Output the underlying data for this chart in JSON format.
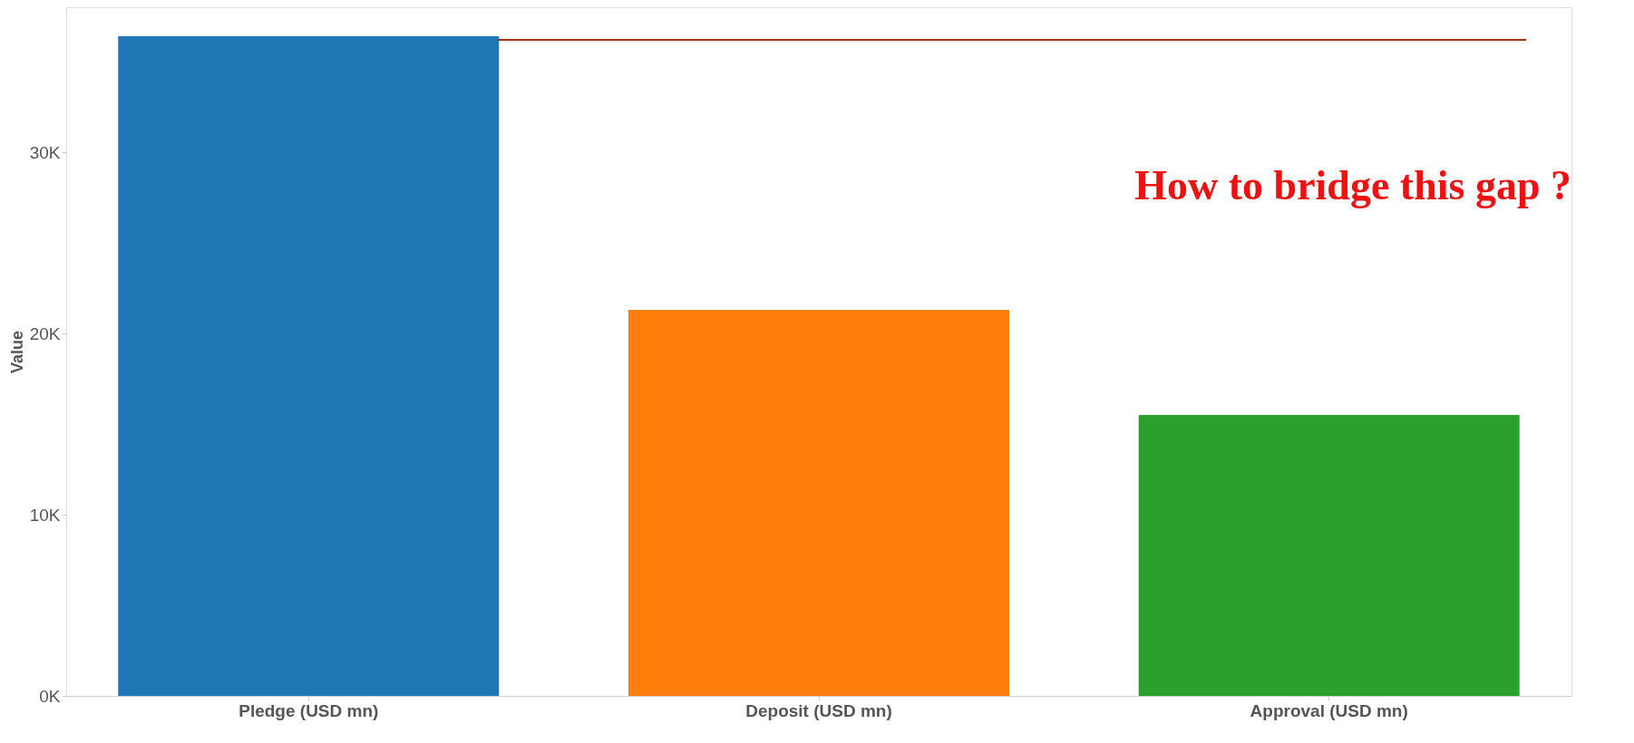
{
  "chart_data": {
    "type": "bar",
    "ylabel": "Value",
    "categories": [
      "Pledge (USD mn)",
      "Deposit (USD mn)",
      "Approval (USD mn)"
    ],
    "colors": [
      "#1f77b4",
      "#ff7f0e",
      "#2ca02c"
    ],
    "values": [
      36400,
      21300,
      15500
    ],
    "ylim": [
      0,
      38000
    ],
    "yticks": [
      {
        "value": 0,
        "label": "0K"
      },
      {
        "value": 10000,
        "label": "10K"
      },
      {
        "value": 20000,
        "label": "20K"
      },
      {
        "value": 30000,
        "label": "30K"
      }
    ],
    "grid": false,
    "ref_lines": [
      {
        "axis": "y",
        "value": 36200,
        "color": "#a0300e"
      }
    ],
    "annotations": [
      "How to bridge this gap ?"
    ]
  }
}
